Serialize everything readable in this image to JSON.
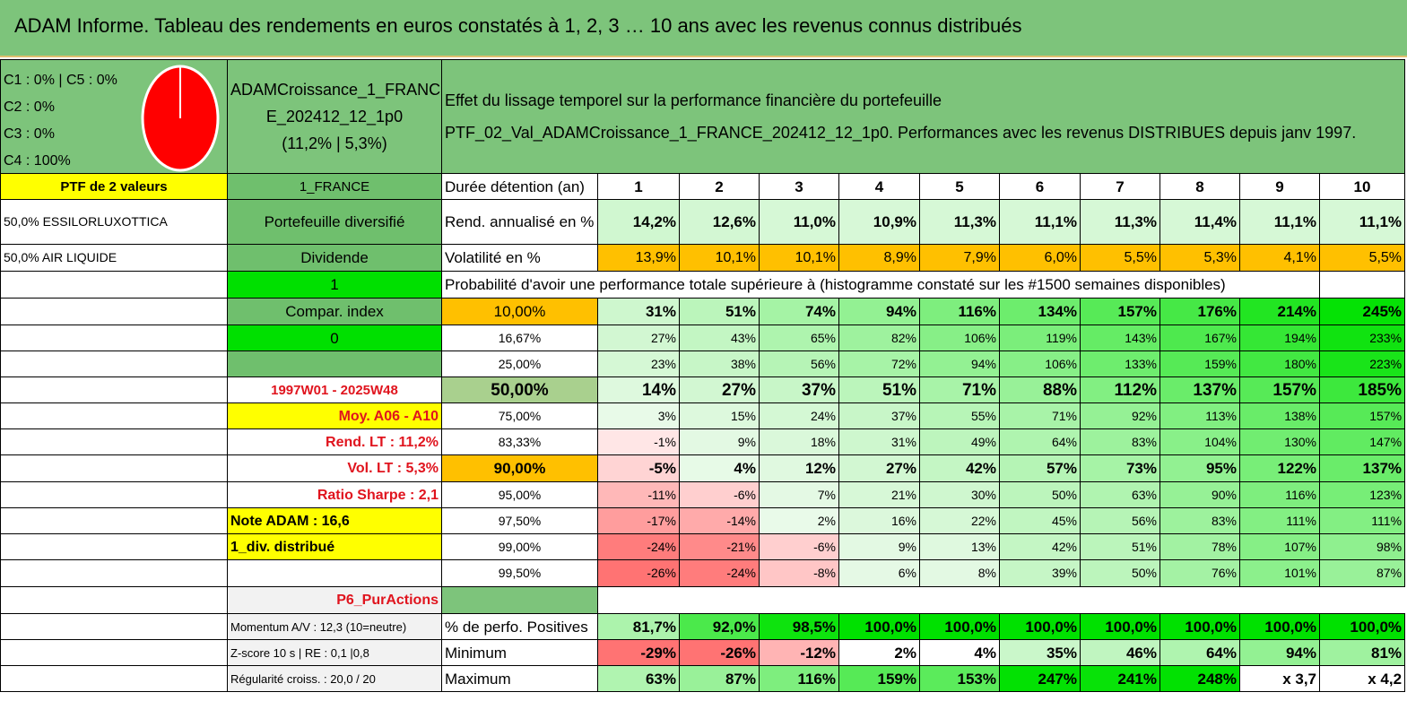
{
  "title": "ADAM Informe. Tableau des rendements en euros constatés à 1, 2, 3 … 10 ans avec les revenus connus distribués",
  "colors": {
    "header_green": "#7dc47b",
    "mid_green": "#6fbf6d",
    "bright_green": "#00e000",
    "yellow": "#ffff00",
    "orange": "#ffc000",
    "red_text": "#e0141e",
    "pie_red": "#ff0000"
  },
  "pie": {
    "legend": [
      "C1 : 0% | C5 : 0%",
      "C2 : 0%",
      "C3 : 0%",
      "C4 : 100%"
    ],
    "share_c4": 100
  },
  "portfolio": {
    "name": "ADAMCroissance_1_FRANCE_202412_12_1p0",
    "name_line1": "ADAMCroissance_1_FRANC",
    "name_line2": "E_202412_12_1p0",
    "stats": "(11,2% | 5,3%)"
  },
  "description": {
    "line1": "Effet du lissage temporel sur la performance financière du portefeuille",
    "line2": "PTF_02_Val_ADAMCroissance_1_FRANCE_202412_12_1p0. Performances avec les revenus DISTRIBUES depuis janv 1997."
  },
  "left": {
    "ptf_count": "PTF de 2 valeurs",
    "holding1": "50,0% ESSILORLUXOTTICA",
    "holding2": "50,0% AIR LIQUIDE"
  },
  "mid": {
    "country": "1_FRANCE",
    "diversified": "Portefeuille diversifié",
    "dividend": "Dividende",
    "dividend_value": "1",
    "compar_index": "Compar. index",
    "compar_value": "0",
    "period": "1997W01 - 2025W48",
    "moy": "Moy. A06 - A10",
    "rend_lt": "Rend. LT : 11,2%",
    "vol_lt": "Vol. LT : 5,3%",
    "sharpe": "Ratio Sharpe : 2,1",
    "note": "Note ADAM : 16,6",
    "div_distrib": "1_div. distribué",
    "category": "P6_PurActions",
    "momentum": "Momentum A/V : 12,3 (10=neutre)",
    "zscore": "Z-score 10 s | RE : 0,1 |0,8",
    "regularite": "Régularité croiss. : 20,0 / 20"
  },
  "table": {
    "duration_label": "Durée détention (an)",
    "years": [
      "1",
      "2",
      "3",
      "4",
      "5",
      "6",
      "7",
      "8",
      "9",
      "10"
    ],
    "rend_label": "Rend. annualisé en %",
    "rend": [
      "14,2%",
      "12,6%",
      "11,0%",
      "10,9%",
      "11,3%",
      "11,1%",
      "11,3%",
      "11,4%",
      "11,1%",
      "11,1%"
    ],
    "vol_label": "Volatilité en %",
    "vol": [
      "13,9%",
      "10,1%",
      "10,1%",
      "8,9%",
      "7,9%",
      "6,0%",
      "5,5%",
      "5,3%",
      "4,1%",
      "5,5%"
    ],
    "prob_label": "Probabilité d'avoir une performance totale supérieure à (histogramme constaté sur les #1500 semaines disponibles)",
    "prob_rows": [
      {
        "threshold": "10,00%",
        "values": [
          "31%",
          "51%",
          "74%",
          "94%",
          "116%",
          "134%",
          "157%",
          "176%",
          "214%",
          "245%"
        ]
      },
      {
        "threshold": "16,67%",
        "values": [
          "27%",
          "43%",
          "65%",
          "82%",
          "106%",
          "119%",
          "143%",
          "167%",
          "194%",
          "233%"
        ]
      },
      {
        "threshold": "25,00%",
        "values": [
          "23%",
          "38%",
          "56%",
          "72%",
          "94%",
          "106%",
          "133%",
          "159%",
          "180%",
          "223%"
        ]
      },
      {
        "threshold": "50,00%",
        "values": [
          "14%",
          "27%",
          "37%",
          "51%",
          "71%",
          "88%",
          "112%",
          "137%",
          "157%",
          "185%"
        ]
      },
      {
        "threshold": "75,00%",
        "values": [
          "3%",
          "15%",
          "24%",
          "37%",
          "55%",
          "71%",
          "92%",
          "113%",
          "138%",
          "157%"
        ]
      },
      {
        "threshold": "83,33%",
        "values": [
          "-1%",
          "9%",
          "18%",
          "31%",
          "49%",
          "64%",
          "83%",
          "104%",
          "130%",
          "147%"
        ]
      },
      {
        "threshold": "90,00%",
        "values": [
          "-5%",
          "4%",
          "12%",
          "27%",
          "42%",
          "57%",
          "73%",
          "95%",
          "122%",
          "137%"
        ]
      },
      {
        "threshold": "95,00%",
        "values": [
          "-11%",
          "-6%",
          "7%",
          "21%",
          "30%",
          "50%",
          "63%",
          "90%",
          "116%",
          "123%"
        ]
      },
      {
        "threshold": "97,50%",
        "values": [
          "-17%",
          "-14%",
          "2%",
          "16%",
          "22%",
          "45%",
          "56%",
          "83%",
          "111%",
          "111%"
        ]
      },
      {
        "threshold": "99,00%",
        "values": [
          "-24%",
          "-21%",
          "-6%",
          "9%",
          "13%",
          "42%",
          "51%",
          "78%",
          "107%",
          "98%"
        ]
      },
      {
        "threshold": "99,50%",
        "values": [
          "-26%",
          "-24%",
          "-8%",
          "6%",
          "8%",
          "39%",
          "50%",
          "76%",
          "101%",
          "87%"
        ]
      }
    ],
    "pos_label": "% de perfo. Positives",
    "pos": [
      "81,7%",
      "92,0%",
      "98,5%",
      "100,0%",
      "100,0%",
      "100,0%",
      "100,0%",
      "100,0%",
      "100,0%",
      "100,0%"
    ],
    "min_label": "Minimum",
    "min": [
      "-29%",
      "-26%",
      "-12%",
      "2%",
      "4%",
      "35%",
      "46%",
      "64%",
      "94%",
      "81%"
    ],
    "max_label": "Maximum",
    "max": [
      "63%",
      "87%",
      "116%",
      "159%",
      "153%",
      "247%",
      "241%",
      "248%",
      "x 3,7",
      "x 4,2"
    ]
  }
}
